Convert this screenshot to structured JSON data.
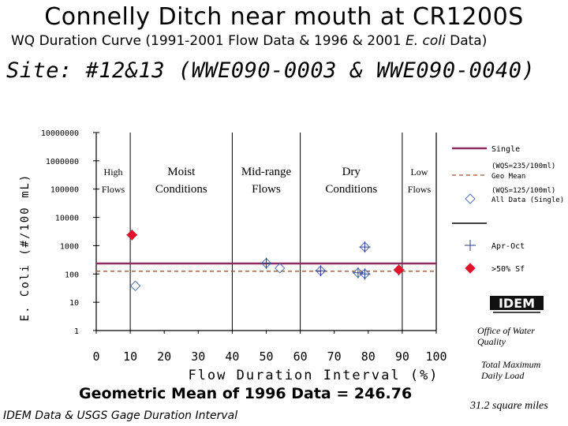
{
  "header": {
    "title": "Connelly Ditch near mouth at CR1200S",
    "subtitle_prefix": "WQ Duration Curve  (1991-2001 Flow Data & 1996 & 2001 ",
    "subtitle_species": "E. coli",
    "subtitle_suffix": " Data)",
    "site": "Site:  #12&13 (WWE090-0003 & WWE090-0040)"
  },
  "footer": {
    "geomean": "Geometric Mean of 1996 Data = 246.76",
    "source": "IDEM Data & USGS Gage Duration Interval",
    "office": "Office of Water Quality",
    "tmdl": "Total Maximum Daily Load",
    "area": "31.2 square miles",
    "logo_text": "IDEM"
  },
  "colors": {
    "single_line": "#8e2a5e",
    "geomean_line": "#a0522d",
    "diamond": "#4a6fb5",
    "plus": "#2d3f8f",
    "red_diamond": "#e0142a"
  },
  "chart_data": {
    "type": "scatter",
    "xlabel": "Flow Duration Interval (%)",
    "ylabel": "E. Coli (#/100 mL)",
    "xlim": [
      0,
      100
    ],
    "ylim": [
      1,
      10000000
    ],
    "y_scale": "log",
    "x_ticks": [
      "0",
      "10",
      "20",
      "30",
      "40",
      "50",
      "60",
      "70",
      "80",
      "90",
      "100"
    ],
    "y_ticks": [
      "1",
      "10",
      "100",
      "1000",
      "10000",
      "100000",
      "1000000",
      "10000000"
    ],
    "grid": false,
    "legend_position": "right",
    "zones": [
      {
        "label": "High Flows",
        "from": 0,
        "to": 10
      },
      {
        "label": "Moist Conditions",
        "from": 10,
        "to": 40
      },
      {
        "label": "Mid-range Flows",
        "from": 40,
        "to": 60
      },
      {
        "label": "Dry Conditions",
        "from": 60,
        "to": 90
      },
      {
        "label": "Low Flows",
        "from": 90,
        "to": 100
      }
    ],
    "zone_boundaries": [
      10,
      40,
      60,
      90
    ],
    "reference_lines": [
      {
        "name": "Single",
        "note": "(WQS=235/100ml)",
        "value": 235,
        "style": "solid"
      },
      {
        "name": "Geo Mean",
        "note": "(WQS=125/100ml)",
        "value": 125,
        "style": "dashed"
      }
    ],
    "series": [
      {
        "name": "All Data (Single)",
        "marker": "diamond",
        "points": [
          [
            10.5,
            2400
          ],
          [
            11.5,
            38
          ],
          [
            50,
            240
          ],
          [
            54,
            160
          ],
          [
            66,
            130
          ],
          [
            77,
            110
          ],
          [
            79,
            100
          ],
          [
            79,
            900
          ],
          [
            89,
            140
          ]
        ]
      },
      {
        "name": "Apr-Oct",
        "marker": "plus",
        "points": [
          [
            10.5,
            2400
          ],
          [
            50,
            240
          ],
          [
            66,
            130
          ],
          [
            77,
            110
          ],
          [
            79,
            100
          ],
          [
            79,
            900
          ],
          [
            89,
            140
          ]
        ]
      },
      {
        "name": ">50% Sf",
        "marker": "red-diamond",
        "points": [
          [
            10.5,
            2400
          ],
          [
            89,
            140
          ]
        ]
      }
    ],
    "legend_extra": [
      "(WQS=235/100ml)",
      "(WQS=125/100ml)"
    ]
  }
}
